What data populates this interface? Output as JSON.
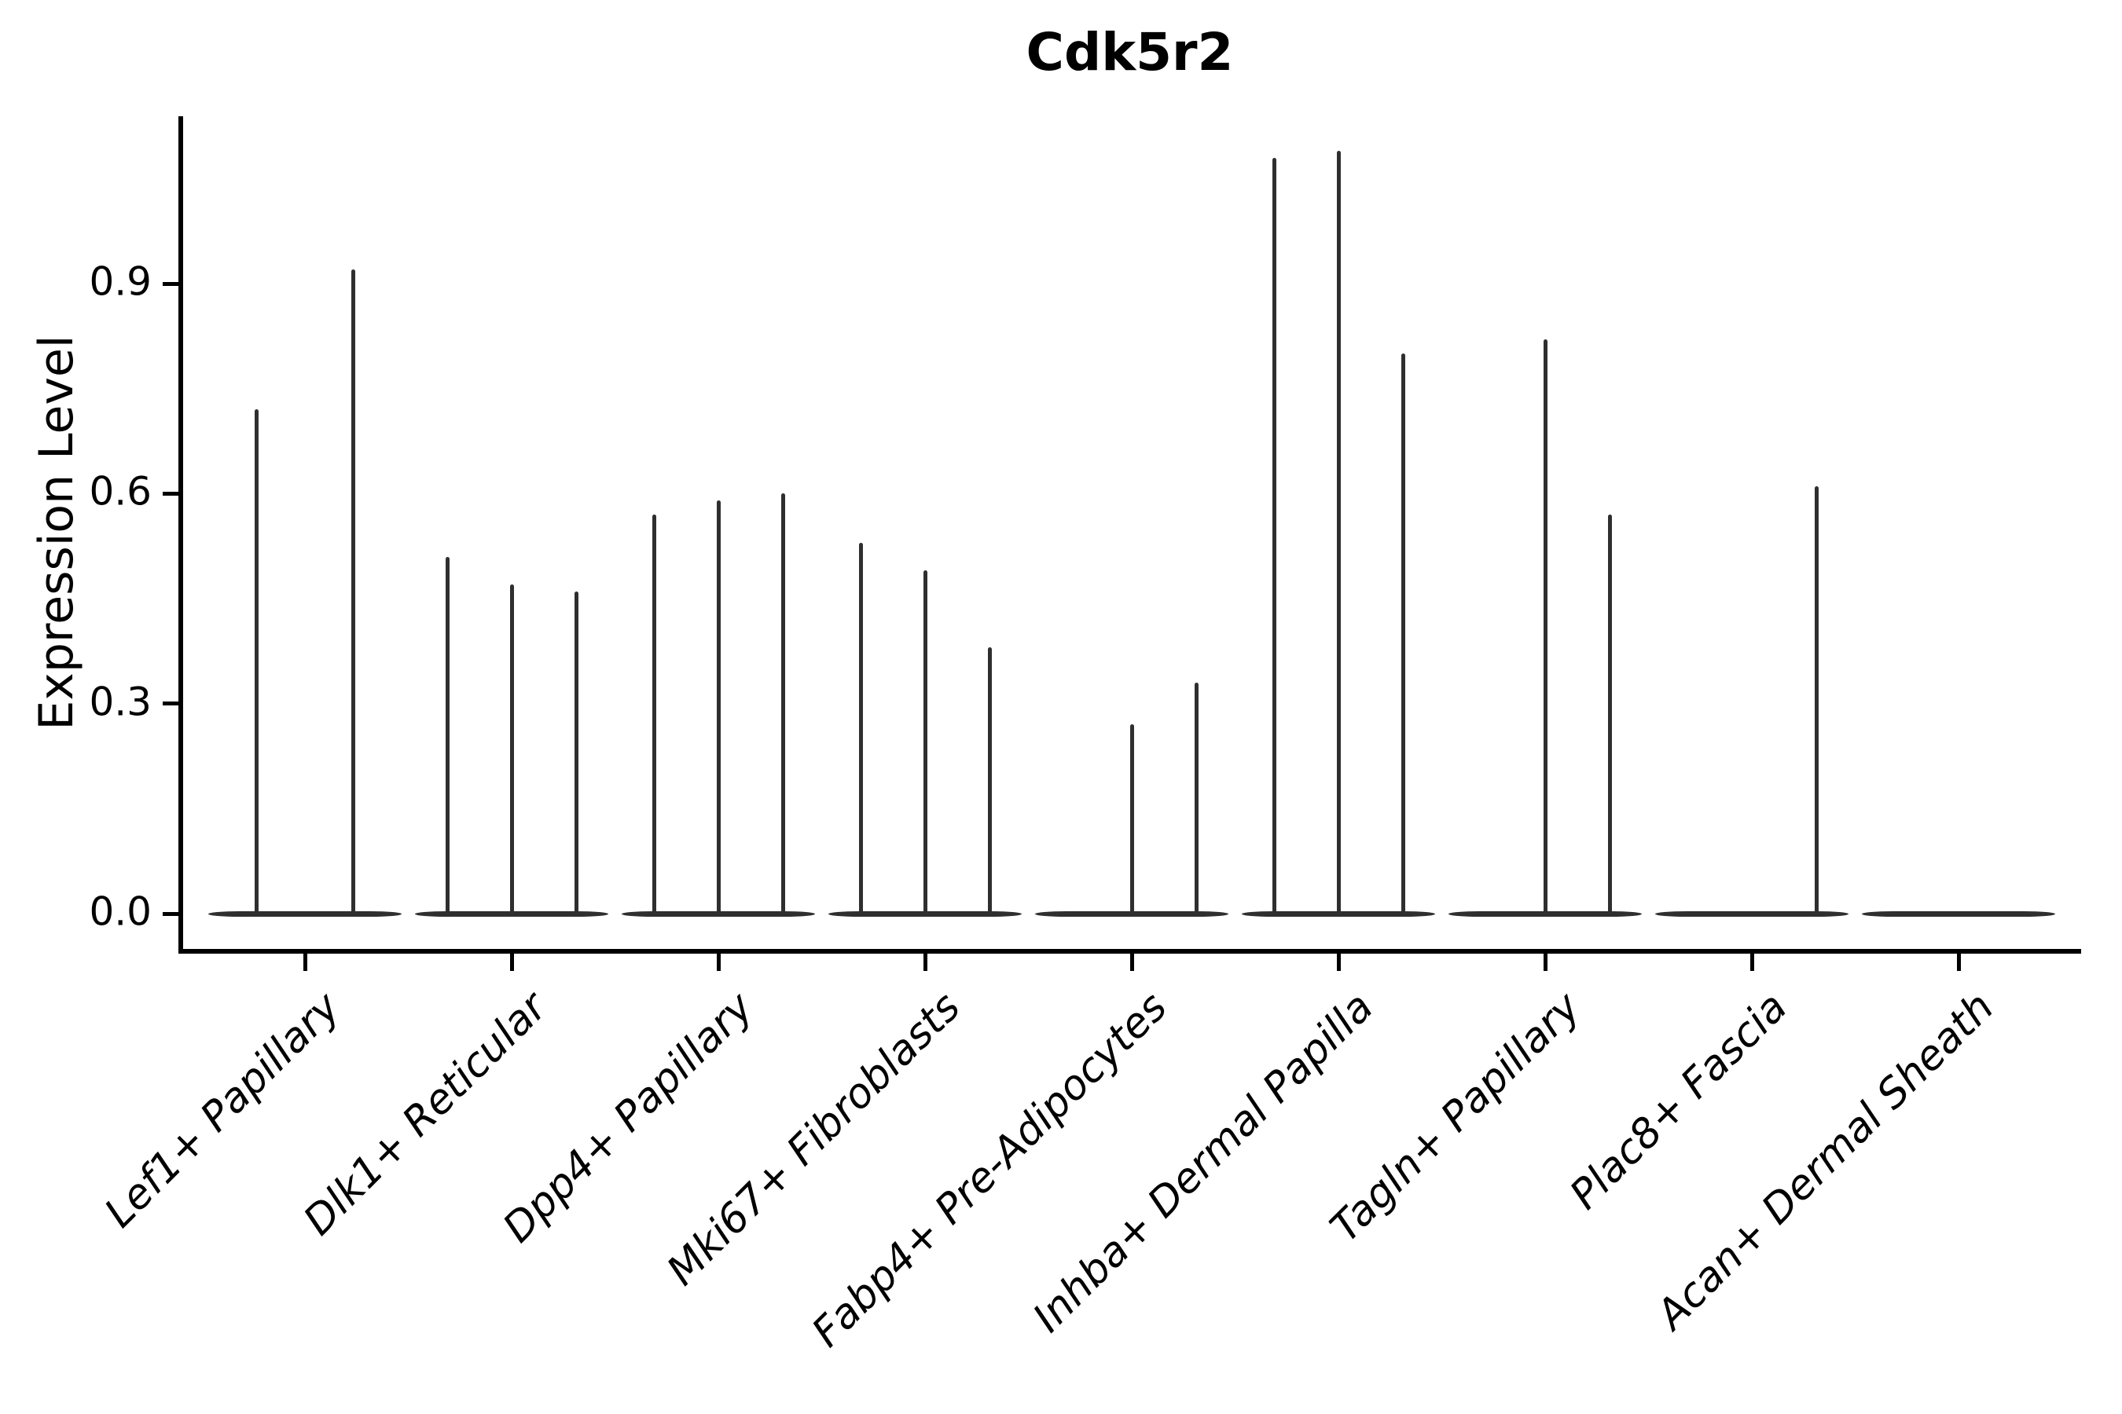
{
  "figure": {
    "title": "Cdk5r2"
  },
  "chart_data": {
    "type": "violin",
    "title": "Cdk5r2",
    "subtitle": "",
    "xlabel": "",
    "ylabel": "Expression Level",
    "ytick_labels": [
      "0.0",
      "0.3",
      "0.6",
      "0.9"
    ],
    "ylim": [
      -0.05,
      1.13
    ],
    "grid": false,
    "legend_position": "none",
    "categories": [
      "Lef1+ Papillary",
      "Dlk1+ Reticular",
      "Dpp4+ Papillary",
      "Mki67+ Fibroblasts",
      "Fabp4+ Pre-Adipocytes",
      "Inhba+ Dermal Papilla",
      "Tagln+ Papillary",
      "Plac8+ Fascia",
      "Acan+ Dermal Sheath"
    ],
    "groups": [
      {
        "category": "Lef1+ Papillary",
        "violin_max_expression": [
          0.72,
          0.92
        ]
      },
      {
        "category": "Dlk1+ Reticular",
        "violin_max_expression": [
          0.51,
          0.47,
          0.46
        ]
      },
      {
        "category": "Dpp4+ Papillary",
        "violin_max_expression": [
          0.57,
          0.59,
          0.6
        ]
      },
      {
        "category": "Mki67+ Fibroblasts",
        "violin_max_expression": [
          0.53,
          0.49,
          0.38
        ]
      },
      {
        "category": "Fabp4+ Pre-Adipocytes",
        "violin_max_expression": [
          0,
          0.27,
          0.33
        ]
      },
      {
        "category": "Inhba+ Dermal Papilla",
        "violin_max_expression": [
          1.08,
          1.09,
          0.8
        ]
      },
      {
        "category": "Tagln+ Papillary",
        "violin_max_expression": [
          0,
          0.82,
          0.57
        ]
      },
      {
        "category": "Plac8+ Fascia",
        "violin_max_expression": [
          0,
          0,
          0.61
        ]
      },
      {
        "category": "Acan+ Dermal Sheath",
        "violin_max_expression": [
          0,
          0,
          0
        ]
      }
    ],
    "annotation": "violins are density-flattened at 0 with thin spikes reaching each group's maximum expression",
    "colors": {
      "violin": "#2f2f2f",
      "axis": "#000000",
      "text": "#000000",
      "background": "#ffffff"
    }
  }
}
